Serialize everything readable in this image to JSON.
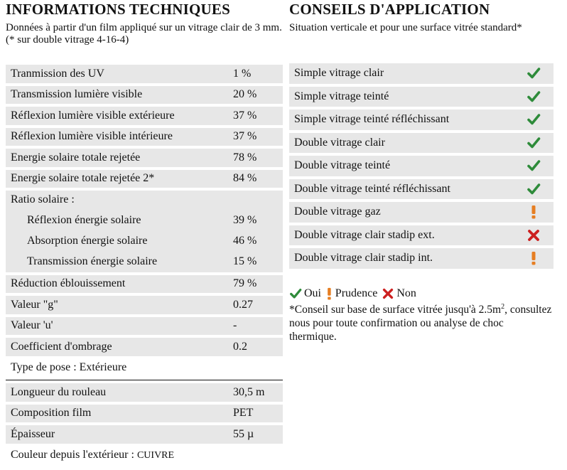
{
  "left": {
    "title": "INFORMATIONS TECHNIQUES",
    "subtitle": "Données à partir d'un film appliqué sur un vitrage clair de 3 mm. (* sur double vitrage 4-16-4)",
    "rows": [
      {
        "label": "Tranmission des UV",
        "value": "1 %"
      },
      {
        "label": "Transmission lumière visible",
        "value": "20 %"
      },
      {
        "label": "Réflexion lumière visible extérieure",
        "value": "37 %"
      },
      {
        "label": "Réflexion lumière visible intérieure",
        "value": "37 %"
      },
      {
        "label": "Energie solaire totale rejetée",
        "value": "78 %"
      },
      {
        "label": "Energie solaire totale rejetée 2*",
        "value": "84 %"
      }
    ],
    "ratio": {
      "label": "Ratio solaire :",
      "items": [
        {
          "label": "Réflexion énergie solaire",
          "value": "39 %"
        },
        {
          "label": "Absorption énergie solaire",
          "value": "46 %"
        },
        {
          "label": "Transmission énergie solaire",
          "value": "15 %"
        }
      ]
    },
    "rows2": [
      {
        "label": "Réduction éblouissement",
        "value": "79 %"
      },
      {
        "label": "Valeur \"g\"",
        "value": "0.27"
      },
      {
        "label": "Valeur 'u'",
        "value": "-"
      },
      {
        "label": "Coefficient d'ombrage",
        "value": "0.2"
      }
    ],
    "pose": "Type de pose : Extérieure",
    "rows3": [
      {
        "label": "Longueur du rouleau",
        "value": "30,5 m"
      },
      {
        "label": "Composition film",
        "value": "PET"
      },
      {
        "label": "Épaisseur",
        "value": "55 µ"
      }
    ],
    "couleur_label": "Couleur depuis l'extérieur : ",
    "couleur_value": "CUIVRE"
  },
  "right": {
    "title": "CONSEILS D'APPLICATION",
    "subtitle": "Situation verticale et pour une surface vitrée standard*",
    "rows": [
      {
        "label": "Simple vitrage clair",
        "status": "oui"
      },
      {
        "label": "Simple vitrage teinté",
        "status": "oui"
      },
      {
        "label": "Simple vitrage teinté réfléchissant",
        "status": "oui"
      },
      {
        "label": "Double vitrage clair",
        "status": "oui"
      },
      {
        "label": "Double vitrage teinté",
        "status": "oui"
      },
      {
        "label": "Double vitrage teinté réfléchissant",
        "status": "oui"
      },
      {
        "label": "Double vitrage gaz",
        "status": "prudence"
      },
      {
        "label": "Double vitrage clair stadip ext.",
        "status": "non"
      },
      {
        "label": "Double vitrage clair stadip int.",
        "status": "prudence"
      }
    ],
    "legend": {
      "oui": "Oui",
      "prudence": "Prudence",
      "non": "Non"
    },
    "note_prefix": "*Conseil sur base de surface vitrée jusqu'à 2.5m",
    "note_sup": "2",
    "note_suffix": ", consultez nous pour toute confirmation ou analyse de choc thermique.",
    "colors": {
      "oui": "#2e8b3a",
      "prudence": "#e67e22",
      "non": "#cc1f1f"
    }
  }
}
